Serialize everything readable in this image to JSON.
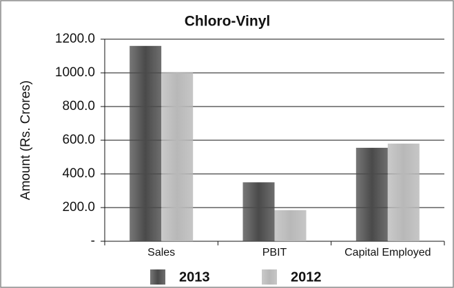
{
  "chart_data": {
    "type": "bar",
    "title": "Chloro-Vinyl",
    "y_label": "Amount (Rs. Crores)",
    "categories": [
      "Sales",
      "PBIT",
      "Capital Employed"
    ],
    "series": [
      {
        "name": "2013",
        "color": "#4a4a4a",
        "values": [
          1160,
          350,
          555
        ]
      },
      {
        "name": "2012",
        "color": "#b8b8b8",
        "values": [
          1005,
          185,
          580
        ]
      }
    ],
    "ylim": [
      0,
      1200
    ],
    "yticks": [
      {
        "value": 0,
        "label": "-"
      },
      {
        "value": 200,
        "label": "200.0"
      },
      {
        "value": 400,
        "label": "400.0"
      },
      {
        "value": 600,
        "label": "600.0"
      },
      {
        "value": 800,
        "label": "800.0"
      },
      {
        "value": 1000,
        "label": "1000.0"
      },
      {
        "value": 1200,
        "label": "1200.0"
      }
    ],
    "grid": true,
    "legend": "bottom"
  }
}
